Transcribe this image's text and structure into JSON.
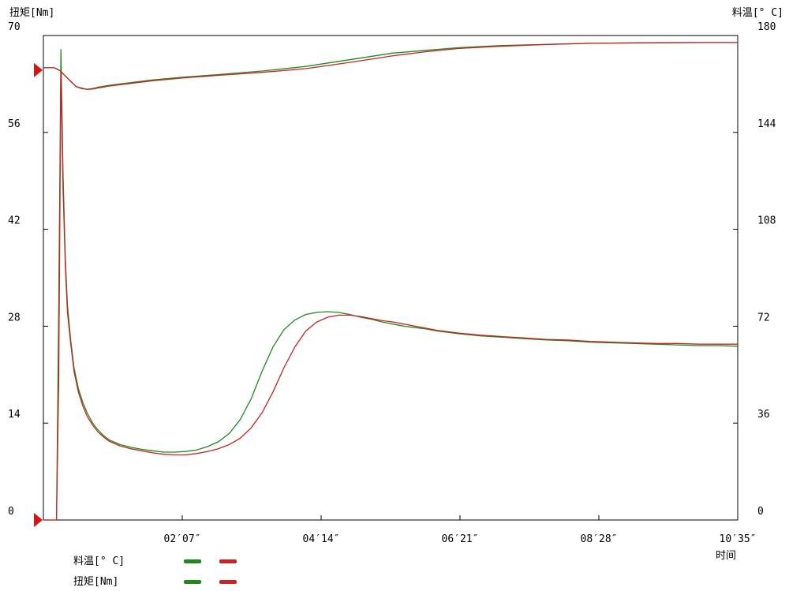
{
  "chart_data": {
    "type": "line",
    "left_axis_label": "扭矩[Nm]",
    "right_axis_label": "料温[° C]",
    "x_axis_label": "时间",
    "left_ticks": [
      "0",
      "14",
      "28",
      "42",
      "56",
      "70"
    ],
    "right_ticks": [
      "0",
      "36",
      "72",
      "108",
      "144",
      "180"
    ],
    "x_ticks": [
      "02′07″",
      "04′14″",
      "06′21″",
      "08′28″",
      "10′35″"
    ],
    "ylim_left": [
      0,
      70
    ],
    "ylim_right": [
      0,
      180
    ],
    "xlim_seconds": [
      0,
      635
    ],
    "left_marker_values": [
      0,
      65
    ],
    "series": [
      {
        "color": "#1e8a1e",
        "group": "temperature",
        "x": [
          0,
          5,
          10,
          15,
          20,
          25,
          30,
          35,
          40,
          45,
          50,
          60,
          80,
          100,
          127,
          160,
          200,
          240,
          280,
          320,
          350,
          380,
          420,
          460,
          500,
          550,
          600,
          635
        ],
        "y": [
          168,
          168,
          168,
          167,
          165,
          163,
          161,
          160.5,
          160,
          160.3,
          160.8,
          161.5,
          162.5,
          163.5,
          164.5,
          165.5,
          166.8,
          168.5,
          171,
          173.5,
          174.5,
          175.5,
          176.3,
          176.7,
          177.1,
          177.3,
          177.4,
          177.4
        ]
      },
      {
        "color": "#cc2222",
        "group": "temperature",
        "x": [
          0,
          5,
          10,
          15,
          20,
          25,
          30,
          35,
          40,
          45,
          50,
          60,
          80,
          100,
          127,
          160,
          200,
          240,
          280,
          320,
          350,
          380,
          420,
          460,
          500,
          550,
          600,
          635
        ],
        "y": [
          168,
          168,
          168,
          167,
          165,
          163,
          161,
          160.3,
          160,
          160.1,
          160.5,
          161.2,
          162.2,
          163.2,
          164.2,
          165.2,
          166.3,
          167.7,
          170,
          172.5,
          174,
          175.2,
          176,
          176.7,
          177.1,
          177.3,
          177.4,
          177.4
        ]
      },
      {
        "color": "#1e8a1e",
        "group": "torque",
        "x": [
          0,
          12,
          14,
          16,
          18,
          20,
          22,
          25,
          28,
          32,
          36,
          40,
          45,
          50,
          55,
          60,
          70,
          80,
          90,
          100,
          110,
          120,
          130,
          140,
          150,
          160,
          170,
          180,
          190,
          200,
          210,
          220,
          230,
          240,
          250,
          260,
          270,
          280,
          290,
          300,
          310,
          320,
          330,
          340,
          350,
          360,
          380,
          400,
          420,
          440,
          460,
          480,
          500,
          520,
          540,
          560,
          580,
          600,
          620,
          635
        ],
        "y": [
          0,
          0,
          30,
          68,
          50,
          38,
          31,
          26,
          22,
          19,
          17,
          15.5,
          14,
          13,
          12.2,
          11.6,
          10.9,
          10.5,
          10.2,
          10.0,
          9.8,
          9.8,
          9.9,
          10.1,
          10.6,
          11.3,
          12.5,
          14.5,
          17.5,
          21.5,
          25,
          27.5,
          28.9,
          29.7,
          30.0,
          30.1,
          30.0,
          29.7,
          29.3,
          29.0,
          28.6,
          28.3,
          28.0,
          27.8,
          27.6,
          27.3,
          26.9,
          26.6,
          26.4,
          26.2,
          26.0,
          25.9,
          25.7,
          25.6,
          25.5,
          25.4,
          25.3,
          25.2,
          25.2,
          25.1
        ]
      },
      {
        "color": "#cc2222",
        "group": "torque",
        "x": [
          0,
          12,
          14,
          16,
          18,
          20,
          22,
          25,
          28,
          32,
          36,
          40,
          45,
          50,
          55,
          60,
          70,
          80,
          90,
          100,
          110,
          120,
          130,
          140,
          150,
          160,
          170,
          180,
          190,
          200,
          210,
          220,
          230,
          240,
          250,
          260,
          270,
          280,
          290,
          300,
          310,
          320,
          330,
          340,
          350,
          360,
          380,
          400,
          420,
          440,
          460,
          480,
          500,
          520,
          540,
          560,
          580,
          600,
          620,
          635
        ],
        "y": [
          0,
          0,
          20,
          65,
          48,
          37,
          30,
          25.5,
          21.5,
          18.5,
          16.5,
          15,
          13.7,
          12.7,
          12.0,
          11.4,
          10.7,
          10.3,
          10.0,
          9.7,
          9.5,
          9.4,
          9.4,
          9.6,
          9.9,
          10.3,
          10.9,
          11.8,
          13.3,
          15.5,
          18.5,
          22,
          25,
          27.3,
          28.6,
          29.3,
          29.6,
          29.6,
          29.4,
          29.1,
          28.8,
          28.6,
          28.3,
          28.0,
          27.7,
          27.4,
          27.0,
          26.7,
          26.5,
          26.3,
          26.1,
          26.0,
          25.8,
          25.7,
          25.6,
          25.5,
          25.5,
          25.4,
          25.4,
          25.4
        ]
      }
    ]
  },
  "legend": {
    "items": [
      {
        "label": "料温[° C]",
        "colors": [
          "#1e8a1e",
          "#cc2222"
        ]
      },
      {
        "label": "扭矩[Nm]",
        "colors": [
          "#1e8a1e",
          "#cc2222"
        ]
      }
    ]
  }
}
